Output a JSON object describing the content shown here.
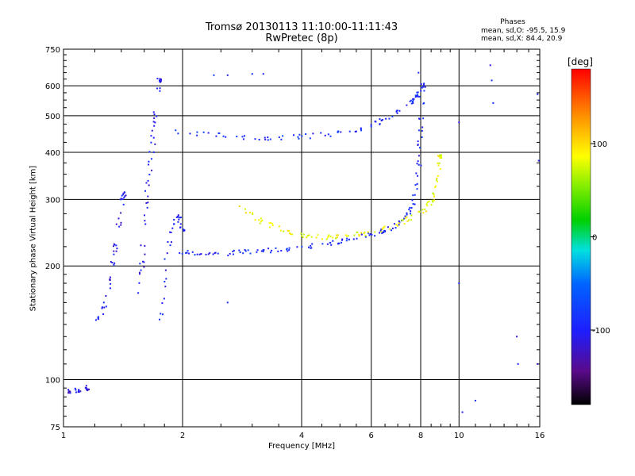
{
  "chart_data": {
    "type": "scatter",
    "title": "Tromsø 20130113 11:10:00-11:11:43",
    "subtitle": "RwPretec (8p)",
    "xlabel": "Frequency [MHz]",
    "ylabel": "Stationary phase Virtual Height [km]",
    "x_scale": "log",
    "y_scale": "log",
    "xlim": [
      1,
      16
    ],
    "ylim": [
      75,
      750
    ],
    "x_ticks": [
      1,
      2,
      4,
      6,
      8,
      10,
      16
    ],
    "y_ticks": [
      75,
      100,
      200,
      300,
      400,
      500,
      600,
      750
    ],
    "grid": true,
    "colorbar": {
      "label": "[deg]",
      "ticks": [
        100,
        0,
        -100
      ],
      "range": [
        -180,
        180
      ],
      "colormap": "rainbow (black-purple-blue-cyan-green-yellow-orange-red)"
    },
    "stats": {
      "title": "Phases",
      "line1": "mean, sd,O: -95.5, 15.9",
      "line2": "mean, sd,X:  84.4, 20.9"
    },
    "series": [
      {
        "trace": "o-mode-F",
        "points": [
          [
            1.95,
            218
          ],
          [
            2.1,
            217
          ],
          [
            2.3,
            216
          ],
          [
            2.5,
            216
          ],
          [
            2.8,
            217
          ],
          [
            3.0,
            218
          ],
          [
            3.3,
            220
          ],
          [
            3.6,
            221
          ],
          [
            4.0,
            224
          ],
          [
            4.4,
            227
          ],
          [
            4.8,
            230
          ],
          [
            5.2,
            234
          ],
          [
            5.6,
            238
          ],
          [
            6.0,
            242
          ],
          [
            6.4,
            247
          ],
          [
            6.8,
            253
          ],
          [
            7.2,
            262
          ],
          [
            7.5,
            275
          ],
          [
            7.7,
            295
          ],
          [
            7.85,
            330
          ],
          [
            7.95,
            390
          ],
          [
            8.0,
            450
          ],
          [
            8.05,
            520
          ],
          [
            8.1,
            600
          ]
        ],
        "phase_deg": -95
      },
      {
        "trace": "x-mode-F",
        "points": [
          [
            2.8,
            288
          ],
          [
            3.0,
            272
          ],
          [
            3.2,
            262
          ],
          [
            3.5,
            252
          ],
          [
            3.8,
            245
          ],
          [
            4.1,
            240
          ],
          [
            4.5,
            238
          ],
          [
            4.9,
            238
          ],
          [
            5.3,
            240
          ],
          [
            5.7,
            243
          ],
          [
            6.2,
            248
          ],
          [
            6.8,
            255
          ],
          [
            7.3,
            263
          ],
          [
            7.8,
            272
          ],
          [
            8.2,
            283
          ],
          [
            8.5,
            298
          ],
          [
            8.7,
            320
          ],
          [
            8.85,
            350
          ],
          [
            8.95,
            390
          ]
        ],
        "phase_deg": 84
      },
      {
        "trace": "o-mode-upper",
        "points": [
          [
            1.9,
            455
          ],
          [
            2.3,
            445
          ],
          [
            2.7,
            440
          ],
          [
            3.1,
            437
          ],
          [
            3.5,
            437
          ],
          [
            4.0,
            440
          ],
          [
            4.6,
            445
          ],
          [
            5.2,
            452
          ],
          [
            5.8,
            465
          ],
          [
            6.3,
            480
          ],
          [
            6.8,
            500
          ],
          [
            7.2,
            520
          ],
          [
            7.6,
            545
          ],
          [
            7.9,
            570
          ]
        ],
        "phase_deg": -90
      },
      {
        "trace": "sporadic-low",
        "points": [
          [
            1.0,
            93
          ],
          [
            1.05,
            93
          ],
          [
            1.1,
            94
          ],
          [
            1.15,
            95
          ]
        ],
        "phase_deg": -110
      },
      {
        "trace": "spread-F-1.3MHz",
        "points": [
          [
            1.2,
            140
          ],
          [
            1.25,
            150
          ],
          [
            1.3,
            170
          ],
          [
            1.32,
            190
          ],
          [
            1.35,
            220
          ],
          [
            1.37,
            250
          ],
          [
            1.4,
            280
          ],
          [
            1.42,
            310
          ]
        ],
        "phase_deg": -105
      },
      {
        "trace": "spread-F-1.6MHz",
        "points": [
          [
            1.55,
            160
          ],
          [
            1.58,
            200
          ],
          [
            1.6,
            250
          ],
          [
            1.62,
            300
          ],
          [
            1.65,
            350
          ],
          [
            1.68,
            420
          ],
          [
            1.7,
            480
          ],
          [
            1.72,
            560
          ],
          [
            1.75,
            620
          ]
        ],
        "phase_deg": -105
      },
      {
        "trace": "spread-F-1.8MHz",
        "points": [
          [
            1.75,
            140
          ],
          [
            1.8,
            180
          ],
          [
            1.85,
            230
          ],
          [
            1.9,
            260
          ],
          [
            1.95,
            270
          ],
          [
            2.0,
            250
          ]
        ],
        "phase_deg": -100
      },
      {
        "trace": "scattered",
        "points": [
          [
            2.4,
            640
          ],
          [
            2.6,
            640
          ],
          [
            3.0,
            645
          ],
          [
            3.2,
            645
          ],
          [
            7.9,
            650
          ],
          [
            12.0,
            680
          ],
          [
            12.1,
            620
          ],
          [
            12.2,
            540
          ],
          [
            10.0,
            480
          ],
          [
            15.8,
            570
          ],
          [
            15.9,
            380
          ],
          [
            10.0,
            180
          ],
          [
            10.2,
            82
          ],
          [
            11.0,
            88
          ],
          [
            14.0,
            130
          ],
          [
            14.1,
            110
          ],
          [
            15.8,
            110
          ],
          [
            2.6,
            160
          ]
        ],
        "phase_deg": -100
      }
    ]
  }
}
